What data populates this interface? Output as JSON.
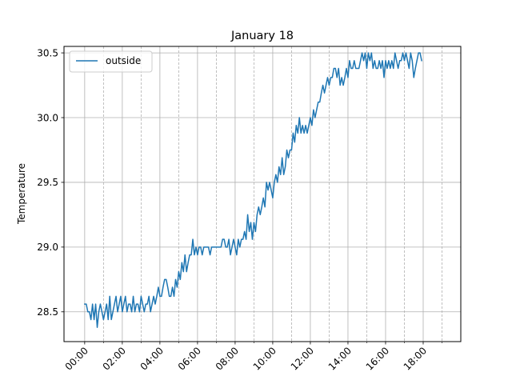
{
  "chart_data": {
    "type": "line",
    "title": "January 18",
    "xlabel": "",
    "ylabel": "Temperature",
    "x_unit": "hours",
    "xlim": [
      -1.1,
      20.0
    ],
    "ylim": [
      28.27,
      30.55
    ],
    "x_major_ticks": [
      0,
      2,
      4,
      6,
      8,
      10,
      12,
      14,
      16,
      18
    ],
    "x_major_tick_labels": [
      "00:00",
      "02:00",
      "04:00",
      "06:00",
      "08:00",
      "10:00",
      "12:00",
      "14:00",
      "16:00",
      "18:00"
    ],
    "x_minor_ticks": [
      1,
      3,
      5,
      7,
      9,
      11,
      13,
      15,
      17,
      19
    ],
    "y_ticks": [
      28.5,
      29.0,
      29.5,
      30.0,
      30.5
    ],
    "y_tick_labels": [
      "28.5",
      "29.0",
      "29.5",
      "30.0",
      "30.5"
    ],
    "grid": true,
    "legend_position": "upper-left",
    "series": [
      {
        "name": "outside",
        "color": "#1f77b4",
        "step_minutes": 5,
        "values": [
          28.56,
          28.56,
          28.5,
          28.5,
          28.44,
          28.56,
          28.44,
          28.56,
          28.38,
          28.5,
          28.56,
          28.5,
          28.44,
          28.5,
          28.56,
          28.44,
          28.62,
          28.44,
          28.5,
          28.56,
          28.62,
          28.5,
          28.56,
          28.62,
          28.5,
          28.56,
          28.62,
          28.5,
          28.56,
          28.56,
          28.5,
          28.62,
          28.5,
          28.56,
          28.56,
          28.5,
          28.62,
          28.56,
          28.5,
          28.56,
          28.56,
          28.62,
          28.5,
          28.56,
          28.62,
          28.56,
          28.62,
          28.69,
          28.62,
          28.62,
          28.69,
          28.75,
          28.75,
          28.69,
          28.62,
          28.62,
          28.69,
          28.62,
          28.75,
          28.69,
          28.81,
          28.75,
          28.88,
          28.81,
          28.94,
          28.81,
          28.88,
          28.94,
          28.94,
          29.06,
          28.94,
          29.0,
          28.94,
          29.0,
          29.0,
          28.94,
          29.0,
          29.0,
          29.0,
          29.0,
          28.94,
          29.0,
          29.0,
          29.0,
          29.0,
          29.0,
          29.0,
          29.0,
          29.06,
          29.06,
          29.0,
          29.0,
          29.06,
          28.94,
          29.0,
          29.06,
          29.0,
          28.94,
          29.06,
          29.0,
          29.06,
          29.06,
          29.12,
          29.06,
          29.25,
          29.12,
          29.19,
          29.06,
          29.19,
          29.12,
          29.25,
          29.31,
          29.25,
          29.31,
          29.38,
          29.31,
          29.5,
          29.44,
          29.5,
          29.44,
          29.38,
          29.5,
          29.56,
          29.5,
          29.62,
          29.56,
          29.69,
          29.56,
          29.62,
          29.75,
          29.69,
          29.75,
          29.75,
          29.88,
          29.81,
          29.94,
          29.88,
          30.0,
          29.88,
          29.94,
          29.88,
          29.94,
          29.88,
          29.94,
          30.0,
          29.94,
          30.06,
          30.0,
          30.06,
          30.12,
          30.12,
          30.19,
          30.25,
          30.19,
          30.25,
          30.31,
          30.25,
          30.31,
          30.31,
          30.38,
          30.38,
          30.31,
          30.38,
          30.25,
          30.31,
          30.25,
          30.31,
          30.38,
          30.31,
          30.44,
          30.38,
          30.38,
          30.44,
          30.38,
          30.38,
          30.38,
          30.44,
          30.5,
          30.44,
          30.5,
          30.38,
          30.5,
          30.44,
          30.5,
          30.38,
          30.44,
          30.38,
          30.38,
          30.44,
          30.38,
          30.44,
          30.31,
          30.44,
          30.38,
          30.44,
          30.38,
          30.44,
          30.38,
          30.5,
          30.44,
          30.38,
          30.44,
          30.44,
          30.5,
          30.44,
          30.5,
          30.44,
          30.38,
          30.5,
          30.44,
          30.31,
          30.38,
          30.44,
          30.5,
          30.5,
          30.44
        ]
      }
    ]
  }
}
